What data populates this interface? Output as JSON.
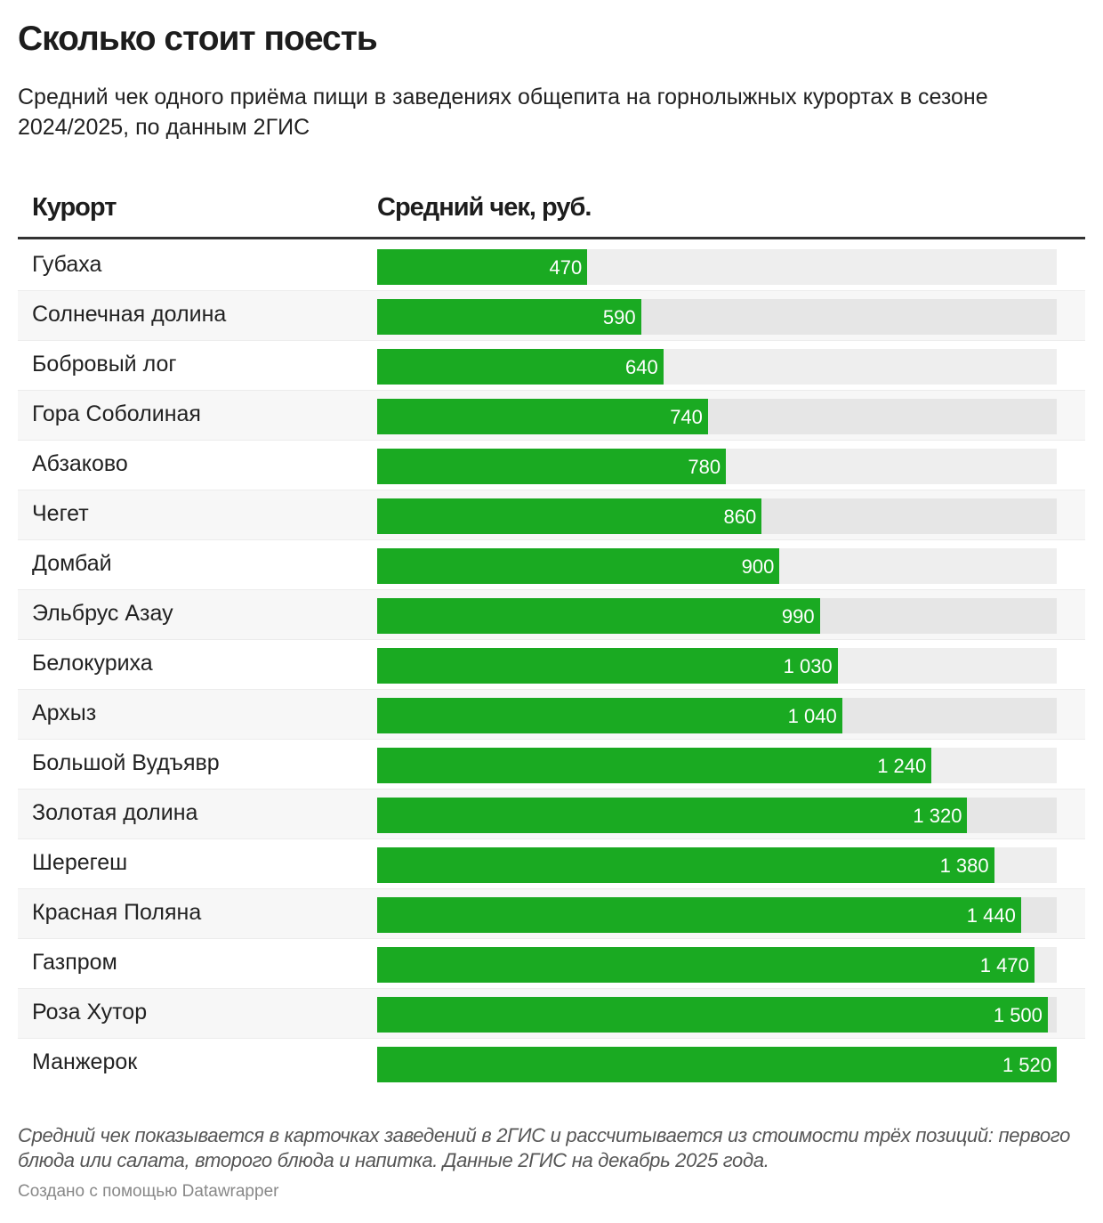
{
  "title": "Сколько стоит поесть",
  "subtitle": "Средний чек одного приёма пищи в заведениях общепита на горнолыжных курортах в сезоне 2024/2025, по данным 2ГИС",
  "chart_data": {
    "type": "table",
    "columns": [
      "Курорт",
      "Средний чек, руб."
    ],
    "bar_color": "#1aaa22",
    "xlim": [
      0,
      1520
    ],
    "rows": [
      {
        "name": "Губаха",
        "value": 470,
        "label": "470"
      },
      {
        "name": "Солнечная долина",
        "value": 590,
        "label": "590"
      },
      {
        "name": "Бобровый лог",
        "value": 640,
        "label": "640"
      },
      {
        "name": "Гора Соболиная",
        "value": 740,
        "label": "740"
      },
      {
        "name": "Абзаково",
        "value": 780,
        "label": "780"
      },
      {
        "name": "Чегет",
        "value": 860,
        "label": "860"
      },
      {
        "name": "Домбай",
        "value": 900,
        "label": "900"
      },
      {
        "name": "Эльбрус Азау",
        "value": 990,
        "label": "990"
      },
      {
        "name": "Белокуриха",
        "value": 1030,
        "label": "1 030"
      },
      {
        "name": "Архыз",
        "value": 1040,
        "label": "1 040"
      },
      {
        "name": "Большой Вудъявр",
        "value": 1240,
        "label": "1 240"
      },
      {
        "name": "Золотая долина",
        "value": 1320,
        "label": "1 320"
      },
      {
        "name": "Шерегеш",
        "value": 1380,
        "label": "1 380"
      },
      {
        "name": "Красная Поляна",
        "value": 1440,
        "label": "1 440"
      },
      {
        "name": "Газпром",
        "value": 1470,
        "label": "1 470"
      },
      {
        "name": "Роза Хутор",
        "value": 1500,
        "label": "1 500"
      },
      {
        "name": "Манжерок",
        "value": 1520,
        "label": "1 520"
      }
    ]
  },
  "notes": "Средний чек показывается в карточках заведений в 2ГИС и рассчитывается из стоимости трёх позиций: первого блюда или салата, второго блюда и напитка. Данные 2ГИС на декабрь 2025 года.",
  "credit": "Создано с помощью Datawrapper"
}
